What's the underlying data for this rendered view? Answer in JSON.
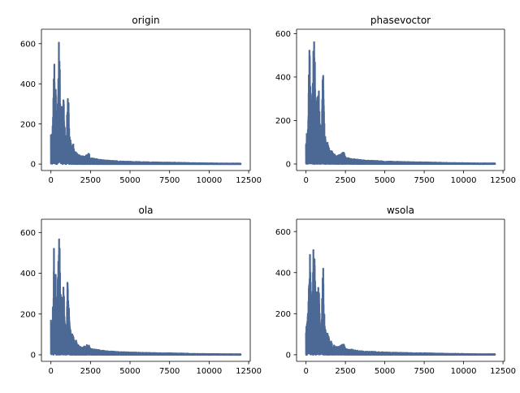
{
  "colors": {
    "series": "#4c6894",
    "axis": "#000000",
    "background": "#ffffff"
  },
  "chart_data": [
    {
      "type": "line",
      "title": "origin",
      "xlim": [
        -600,
        12600
      ],
      "ylim": [
        -32,
        672
      ],
      "xticks": [
        0,
        2500,
        5000,
        7500,
        10000,
        12500
      ],
      "yticks": [
        0,
        200,
        400,
        600
      ],
      "n_points": 12000,
      "envelope": {
        "x": [
          0,
          50,
          100,
          150,
          200,
          250,
          300,
          350,
          400,
          450,
          500,
          550,
          600,
          650,
          700,
          750,
          800,
          850,
          900,
          950,
          1000,
          1050,
          1100,
          1150,
          1200,
          1300,
          1400,
          1500,
          1600,
          1700,
          1800,
          1900,
          2000,
          2200,
          2400,
          2500,
          2700,
          3000,
          3500,
          4000,
          4500,
          5000,
          5500,
          6000,
          6500,
          7000,
          7500,
          8000,
          8500,
          9000,
          10000,
          11000,
          12000
        ],
        "y": [
          175,
          150,
          180,
          310,
          560,
          380,
          430,
          300,
          260,
          420,
          640,
          540,
          290,
          310,
          330,
          220,
          400,
          240,
          130,
          150,
          160,
          390,
          415,
          200,
          140,
          90,
          110,
          60,
          70,
          50,
          45,
          40,
          38,
          45,
          55,
          30,
          28,
          24,
          18,
          16,
          14,
          12,
          11,
          10,
          9,
          8,
          8,
          7,
          6,
          5,
          4,
          3,
          3
        ]
      }
    },
    {
      "type": "line",
      "title": "phasevoctor",
      "xlim": [
        -600,
        12600
      ],
      "ylim": [
        -30,
        620
      ],
      "xticks": [
        0,
        2500,
        5000,
        7500,
        10000,
        12500
      ],
      "yticks": [
        0,
        200,
        400,
        600
      ],
      "n_points": 12000,
      "envelope": {
        "x": [
          0,
          50,
          100,
          150,
          200,
          250,
          300,
          350,
          400,
          450,
          500,
          550,
          600,
          650,
          700,
          750,
          800,
          850,
          900,
          950,
          1000,
          1050,
          1100,
          1150,
          1200,
          1300,
          1400,
          1500,
          1600,
          1700,
          1800,
          1900,
          2000,
          2200,
          2400,
          2500,
          2700,
          3000,
          3500,
          4000,
          4500,
          5000,
          5500,
          6000,
          6500,
          7000,
          7500,
          8000,
          8500,
          9000,
          10000,
          11000,
          12000
        ],
        "y": [
          140,
          170,
          180,
          250,
          570,
          520,
          360,
          280,
          300,
          480,
          585,
          560,
          280,
          300,
          320,
          270,
          395,
          250,
          130,
          150,
          200,
          380,
          425,
          220,
          140,
          90,
          110,
          60,
          70,
          50,
          45,
          40,
          38,
          45,
          55,
          30,
          28,
          24,
          18,
          16,
          14,
          12,
          11,
          10,
          9,
          8,
          8,
          7,
          6,
          5,
          4,
          3,
          3
        ]
      }
    },
    {
      "type": "line",
      "title": "ola",
      "xlim": [
        -600,
        12600
      ],
      "ylim": [
        -32,
        665
      ],
      "xticks": [
        0,
        2500,
        5000,
        7500,
        10000,
        12500
      ],
      "yticks": [
        0,
        200,
        400,
        600
      ],
      "n_points": 12000,
      "envelope": {
        "x": [
          0,
          50,
          100,
          150,
          200,
          250,
          300,
          350,
          400,
          450,
          500,
          550,
          600,
          650,
          700,
          750,
          800,
          850,
          900,
          950,
          1000,
          1050,
          1100,
          1150,
          1200,
          1300,
          1400,
          1500,
          1600,
          1700,
          1800,
          1900,
          2000,
          2200,
          2400,
          2500,
          2700,
          3000,
          3500,
          4000,
          4500,
          5000,
          5500,
          6000,
          6500,
          7000,
          7500,
          8000,
          8500,
          9000,
          10000,
          11000,
          12000
        ],
        "y": [
          175,
          150,
          180,
          320,
          570,
          380,
          420,
          300,
          260,
          430,
          635,
          560,
          290,
          310,
          330,
          220,
          390,
          240,
          130,
          150,
          160,
          380,
          400,
          200,
          140,
          90,
          110,
          60,
          70,
          50,
          45,
          40,
          38,
          45,
          55,
          30,
          28,
          24,
          18,
          16,
          14,
          12,
          11,
          10,
          9,
          8,
          8,
          7,
          6,
          5,
          4,
          3,
          3
        ]
      }
    },
    {
      "type": "line",
      "title": "wsola",
      "xlim": [
        -600,
        12600
      ],
      "ylim": [
        -32,
        660
      ],
      "xticks": [
        0,
        2500,
        5000,
        7500,
        10000,
        12500
      ],
      "yticks": [
        0,
        200,
        400,
        600
      ],
      "n_points": 12000,
      "envelope": {
        "x": [
          0,
          50,
          100,
          150,
          200,
          250,
          300,
          350,
          400,
          450,
          500,
          550,
          600,
          650,
          700,
          750,
          800,
          850,
          900,
          950,
          1000,
          1050,
          1100,
          1150,
          1200,
          1300,
          1400,
          1500,
          1600,
          1700,
          1800,
          1900,
          2000,
          2200,
          2400,
          2500,
          2700,
          3000,
          3500,
          4000,
          4500,
          5000,
          5500,
          6000,
          6500,
          7000,
          7500,
          8000,
          8500,
          9000,
          10000,
          11000,
          12000
        ],
        "y": [
          140,
          150,
          170,
          300,
          550,
          500,
          380,
          300,
          280,
          470,
          625,
          560,
          290,
          300,
          320,
          260,
          380,
          240,
          130,
          150,
          200,
          400,
          430,
          220,
          140,
          90,
          110,
          60,
          70,
          50,
          45,
          40,
          38,
          45,
          55,
          30,
          28,
          24,
          18,
          16,
          14,
          12,
          11,
          10,
          9,
          8,
          8,
          7,
          6,
          5,
          4,
          3,
          3
        ]
      }
    }
  ]
}
